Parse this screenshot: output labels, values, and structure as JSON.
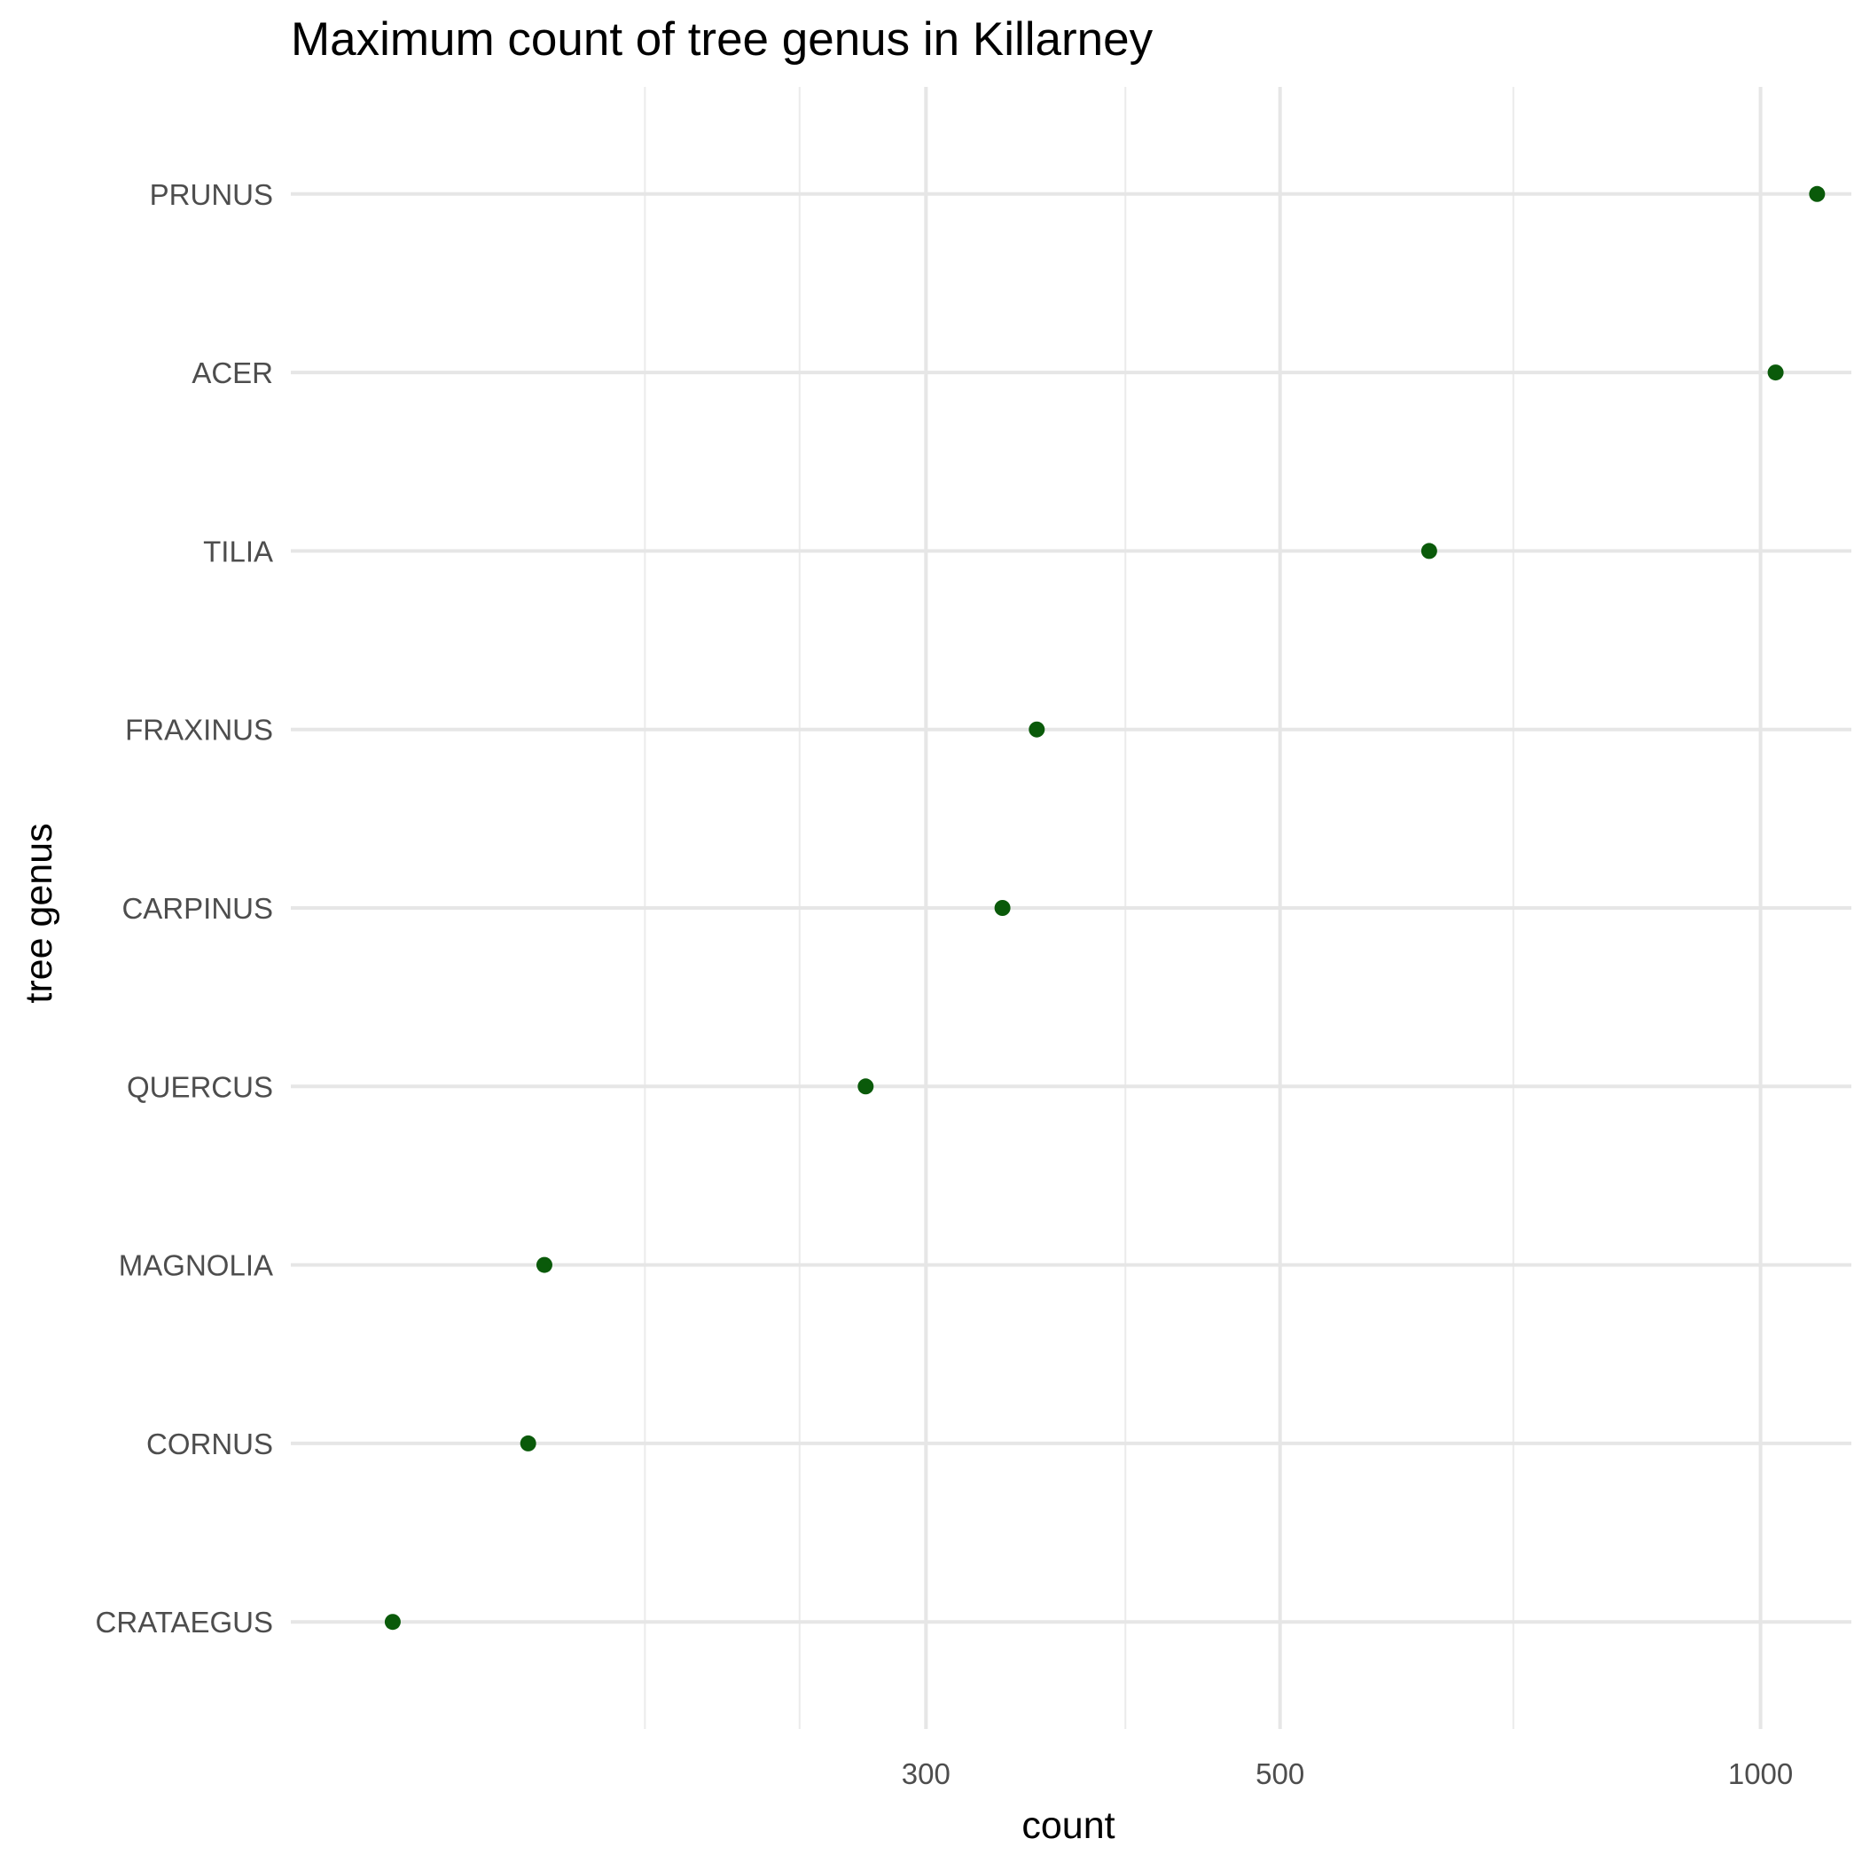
{
  "chart_data": {
    "type": "scatter",
    "title": "Maximum count of tree genus in Killarney",
    "xlabel": "count",
    "ylabel": "tree genus",
    "x_scale": "log",
    "xlim": [
      120,
      1140
    ],
    "x_ticks": [
      300,
      500,
      1000
    ],
    "x_minor_ticks": [
      200,
      250,
      400,
      700
    ],
    "grid": true,
    "point_color": "#0a5a0a",
    "categories": [
      "PRUNUS",
      "ACER",
      "TILIA",
      "FRAXINUS",
      "CARPINUS",
      "QUERCUS",
      "MAGNOLIA",
      "CORNUS",
      "CRATAEGUS"
    ],
    "values": [
      1085,
      1022,
      620,
      352,
      335,
      275,
      173,
      169,
      139
    ]
  }
}
